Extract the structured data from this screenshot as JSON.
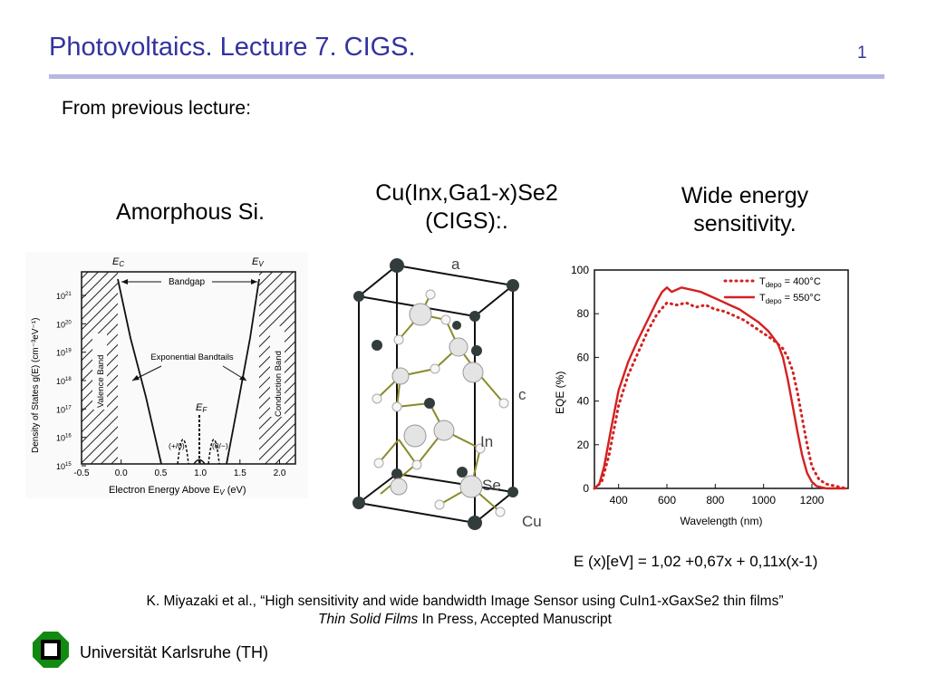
{
  "slide": {
    "title": "Photovoltaics. Lecture 7. CIGS.",
    "page_number": "1",
    "subtitle": "From previous lecture:"
  },
  "captions": {
    "amorphous": "Amorphous Si.",
    "cigs_line1": "Cu(Inx,Ga1-x)Se2",
    "cigs_line2": "(CIGS):.",
    "wide_line1": "Wide energy",
    "wide_line2": "sensitivity."
  },
  "dos_figure": {
    "ec_label": "E",
    "ec_sub": "C",
    "ev_label": "E",
    "ev_sub": "V",
    "bandgap_label": "Bandgap",
    "tails_label": "Exponential Bandtails",
    "ef_label": "E",
    "ef_sub": "F",
    "state_plus": "(+/0)",
    "state_minus": "(0/−)",
    "valence_band": "Valence Band",
    "conduction_band": "Conduction Band",
    "ylabel": "Density of States g(E) (cm⁻³eV⁻¹)",
    "xlabel": "Electron Energy Above E",
    "xlabel_sub": "V",
    "xlabel_unit": " (eV)",
    "x_ticks": [
      "-0.5",
      "0.0",
      "0.5",
      "1.0",
      "1.5",
      "2.0"
    ],
    "y_ticks": [
      "10",
      "10",
      "10",
      "10",
      "10",
      "10",
      "10"
    ],
    "y_exps": [
      "21",
      "20",
      "19",
      "18",
      "17",
      "16",
      "15"
    ]
  },
  "crystal_figure": {
    "label_a": "a",
    "label_c": "c",
    "label_in": "In",
    "label_se": "Se",
    "label_cu": "Cu"
  },
  "chart_data": {
    "type": "line",
    "title": "",
    "xlabel": "Wavelength (nm)",
    "ylabel": "EQE (%)",
    "xlim": [
      300,
      1350
    ],
    "ylim": [
      0,
      100
    ],
    "x_ticks": [
      400,
      600,
      800,
      1000,
      1200
    ],
    "y_ticks": [
      0,
      20,
      40,
      60,
      80,
      100
    ],
    "grid": false,
    "legend_position": "top-right",
    "color": "#d42020",
    "series": [
      {
        "name": "T_depo = 400°C",
        "legend_main": "T",
        "legend_sub": "depo",
        "legend_value": " = 400°C",
        "style": "dotted",
        "x": [
          300,
          330,
          360,
          400,
          440,
          480,
          520,
          560,
          600,
          640,
          680,
          720,
          760,
          800,
          840,
          880,
          920,
          960,
          1000,
          1040,
          1080,
          1100,
          1120,
          1140,
          1160,
          1180,
          1200,
          1230,
          1260,
          1300,
          1340
        ],
        "y": [
          0,
          3,
          15,
          38,
          52,
          62,
          72,
          80,
          85,
          84,
          85,
          83,
          84,
          82,
          81,
          79,
          77,
          74,
          71,
          68,
          64,
          60,
          54,
          44,
          32,
          20,
          10,
          4,
          2,
          1,
          0
        ]
      },
      {
        "name": "T_depo = 550°C",
        "legend_main": "T",
        "legend_sub": "depo",
        "legend_value": " = 550°C",
        "style": "solid",
        "x": [
          300,
          320,
          340,
          370,
          400,
          440,
          480,
          520,
          560,
          580,
          600,
          620,
          660,
          700,
          740,
          780,
          820,
          860,
          900,
          940,
          980,
          1020,
          1060,
          1080,
          1100,
          1120,
          1140,
          1160,
          1180,
          1200,
          1220,
          1260,
          1300,
          1340
        ],
        "y": [
          0,
          2,
          10,
          28,
          45,
          58,
          68,
          77,
          86,
          90,
          92,
          90,
          92,
          91,
          90,
          88,
          86,
          84,
          82,
          79,
          76,
          72,
          66,
          60,
          50,
          38,
          26,
          15,
          7,
          3,
          1,
          0,
          0,
          0
        ]
      }
    ]
  },
  "formula": "E (x)[eV] = 1,02 +0,67x + 0,11x(x-1)",
  "reference": {
    "line1": "K. Miyazaki et al., “High sensitivity and wide bandwidth Image Sensor using CuIn1-xGaxSe2 thin films”",
    "journal": "Thin Solid Films",
    "line2_rest": " In Press, Accepted Manuscript"
  },
  "footer": {
    "university": "Universität Karlsruhe (TH)"
  }
}
